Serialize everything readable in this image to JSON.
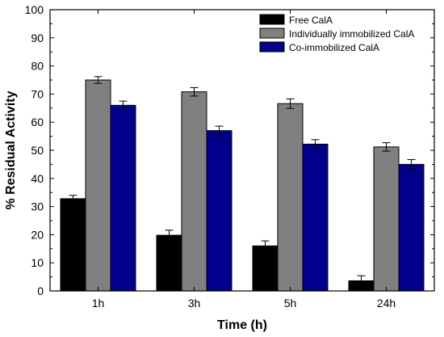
{
  "chart_data": {
    "type": "bar",
    "title": "",
    "xlabel": "Time (h)",
    "ylabel": "% Residual Activity",
    "categories": [
      "1h",
      "3h",
      "5h",
      "24h"
    ],
    "ylim": [
      0,
      100
    ],
    "yticks": [
      0,
      10,
      20,
      30,
      40,
      50,
      60,
      70,
      80,
      90,
      100
    ],
    "grid": false,
    "legend_position": "top-right",
    "series": [
      {
        "name": "Free CalA",
        "color": "#000000",
        "values": [
          32.8,
          19.8,
          16.0,
          3.6
        ],
        "errors": [
          1.2,
          1.8,
          1.8,
          1.8
        ]
      },
      {
        "name": "Individually immobilized CalA",
        "color": "#808080",
        "values": [
          75.0,
          70.8,
          66.6,
          51.2
        ],
        "errors": [
          1.2,
          1.5,
          1.7,
          1.5
        ]
      },
      {
        "name": "Co-immobilized CalA",
        "color": "#00008B",
        "values": [
          66.0,
          57.0,
          52.2,
          45.0
        ],
        "errors": [
          1.5,
          1.6,
          1.6,
          1.7
        ]
      }
    ]
  }
}
